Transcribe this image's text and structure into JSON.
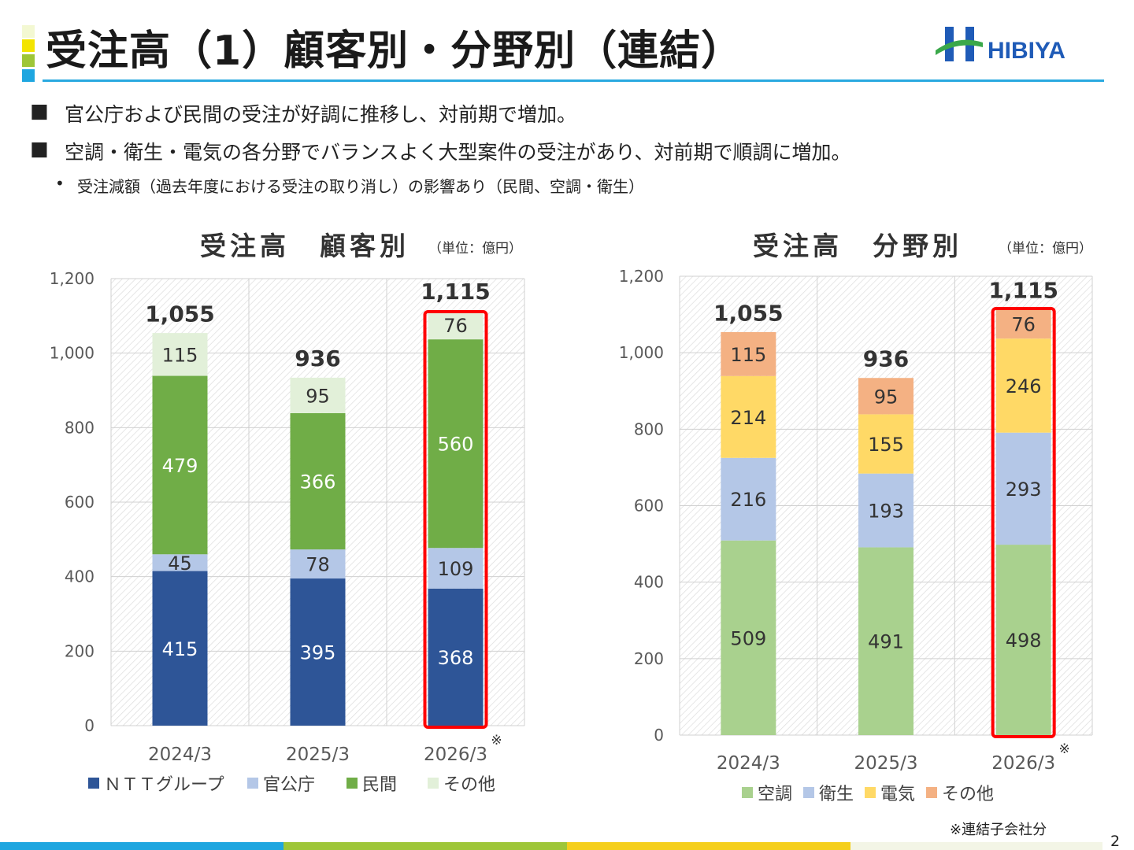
{
  "title": "受注高（1）顧客別・分野別（連結）",
  "logo_text": "HIBIYA",
  "bullets": [
    {
      "mark": "■",
      "text": "官公庁および民間の受注が好調に推移し、対前期で増加。"
    },
    {
      "mark": "■",
      "text": "空調・衛生・電気の各分野でバランスよく大型案件の受注があり、対前期で順調に増加。"
    },
    {
      "mark": "•",
      "text": "受注減額（過去年度における受注の取り消し）の影響あり（民間、空調・衛生）"
    }
  ],
  "footnote": "※連結子会社分",
  "page_number": "2",
  "colors": {
    "accent_yellow": "#f3e400",
    "accent_green": "#9ec638",
    "accent_blue": "#1ea6e0",
    "title_underline": "#29a9e0",
    "logo_blue": "#1f5bb7",
    "logo_green": "#3aa84a",
    "highlight": "#ff0000",
    "footer": [
      "#1ea6e0",
      "#9ec638",
      "#f5cf1c",
      "#f3f5e6"
    ]
  },
  "chart_data": [
    {
      "type": "bar",
      "stacked": true,
      "title": "受注高　顧客別",
      "unit": "（単位：億円）",
      "categories": [
        "2024/3",
        "2025/3",
        "2026/3"
      ],
      "category_note": "※",
      "highlight_category": "2026/3",
      "ylim": [
        0,
        1200
      ],
      "yticks": [
        "0",
        "200",
        "400",
        "600",
        "800",
        "1,000",
        "1,200"
      ],
      "ytick_values": [
        0,
        200,
        400,
        600,
        800,
        1000,
        1200
      ],
      "grid": true,
      "legend_position": "bottom",
      "totals": [
        1055,
        936,
        1115
      ],
      "total_labels": [
        "1,055",
        "936",
        "1,115"
      ],
      "series": [
        {
          "name": "ＮＴＴグループ",
          "values": [
            415,
            395,
            368
          ],
          "labels": [
            "415",
            "395",
            "368"
          ],
          "color": "#2e5597",
          "label_color": "#ffffff"
        },
        {
          "name": "官公庁",
          "values": [
            45,
            78,
            109
          ],
          "labels": [
            "45",
            "78",
            "109"
          ],
          "color": "#b4c7e7",
          "label_color": "#333333"
        },
        {
          "name": "民間",
          "values": [
            479,
            366,
            560
          ],
          "labels": [
            "479",
            "366",
            "560"
          ],
          "color": "#70ad47",
          "label_color": "#ffffff"
        },
        {
          "name": "その他",
          "values": [
            115,
            95,
            76
          ],
          "labels": [
            "115",
            "95",
            "76"
          ],
          "color": "#e2f0d9",
          "label_color": "#333333"
        }
      ]
    },
    {
      "type": "bar",
      "stacked": true,
      "title": "受注高　分野別",
      "unit": "（単位：億円）",
      "categories": [
        "2024/3",
        "2025/3",
        "2026/3"
      ],
      "category_note": "※",
      "highlight_category": "2026/3",
      "ylim": [
        0,
        1200
      ],
      "yticks": [
        "0",
        "200",
        "400",
        "600",
        "800",
        "1,000",
        "1,200"
      ],
      "ytick_values": [
        0,
        200,
        400,
        600,
        800,
        1000,
        1200
      ],
      "grid": true,
      "legend_position": "bottom",
      "totals": [
        1055,
        936,
        1115
      ],
      "total_labels": [
        "1,055",
        "936",
        "1,115"
      ],
      "series": [
        {
          "name": "空調",
          "values": [
            509,
            491,
            498
          ],
          "labels": [
            "509",
            "491",
            "498"
          ],
          "color": "#a9d18e",
          "label_color": "#333333"
        },
        {
          "name": "衛生",
          "values": [
            216,
            193,
            293
          ],
          "labels": [
            "216",
            "193",
            "293"
          ],
          "color": "#b4c7e7",
          "label_color": "#333333"
        },
        {
          "name": "電気",
          "values": [
            214,
            155,
            246
          ],
          "labels": [
            "214",
            "155",
            "246"
          ],
          "color": "#ffd966",
          "label_color": "#333333"
        },
        {
          "name": "その他",
          "values": [
            115,
            95,
            76
          ],
          "labels": [
            "115",
            "95",
            "76"
          ],
          "color": "#f4b183",
          "label_color": "#333333"
        }
      ]
    }
  ]
}
